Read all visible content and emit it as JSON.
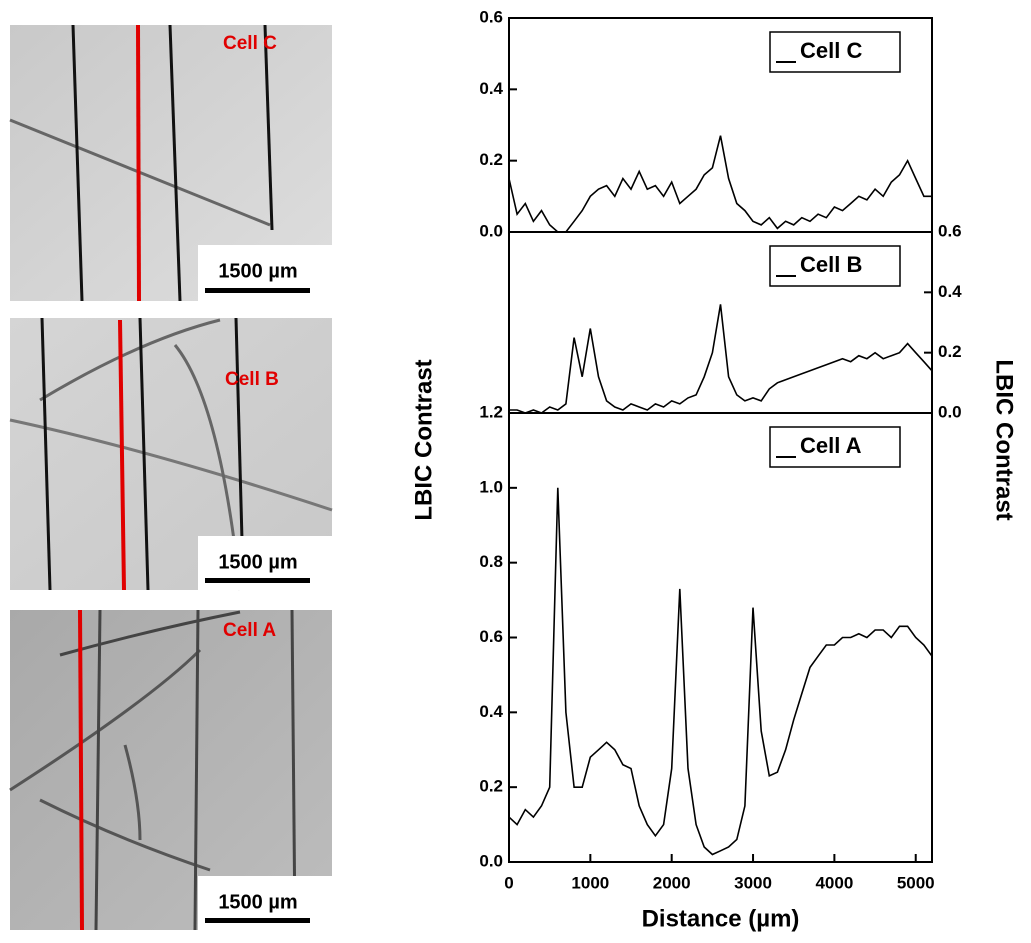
{
  "images": [
    {
      "label": "Cell C",
      "scale_bar": "1500 µm"
    },
    {
      "label": "Cell B",
      "scale_bar": "1500 µm"
    },
    {
      "label": "Cell A",
      "scale_bar": "1500 µm"
    }
  ],
  "chart_data": [
    {
      "type": "line",
      "x": [
        0,
        100,
        200,
        300,
        400,
        500,
        600,
        700,
        800,
        900,
        1000,
        1100,
        1200,
        1300,
        1400,
        1500,
        1600,
        1700,
        1800,
        1900,
        2000,
        2100,
        2200,
        2300,
        2400,
        2500,
        2600,
        2700,
        2800,
        2900,
        3000,
        3100,
        3200,
        3300,
        3400,
        3500,
        3600,
        3700,
        3800,
        3900,
        4000,
        4100,
        4200,
        4300,
        4400,
        4500,
        4600,
        4700,
        4800,
        4900,
        5000,
        5100,
        5200
      ],
      "series": [
        {
          "name": "Cell C",
          "color": "#000000",
          "values": [
            0.15,
            0.05,
            0.08,
            0.03,
            0.06,
            0.02,
            0.0,
            0.0,
            0.03,
            0.06,
            0.1,
            0.12,
            0.13,
            0.1,
            0.15,
            0.12,
            0.17,
            0.12,
            0.13,
            0.1,
            0.14,
            0.08,
            0.1,
            0.12,
            0.16,
            0.18,
            0.27,
            0.15,
            0.08,
            0.06,
            0.03,
            0.02,
            0.04,
            0.01,
            0.03,
            0.02,
            0.04,
            0.03,
            0.05,
            0.04,
            0.07,
            0.06,
            0.08,
            0.1,
            0.09,
            0.12,
            0.1,
            0.14,
            0.16,
            0.2,
            0.15,
            0.1,
            0.1
          ]
        }
      ],
      "xlim": [
        0,
        5200
      ],
      "ylim": [
        0,
        0.6
      ],
      "yaxis": "left",
      "yticks": [
        {
          "value": 0,
          "label": "0.0"
        },
        0.2,
        0.4,
        0.6
      ]
    },
    {
      "type": "line",
      "x": [
        0,
        100,
        200,
        300,
        400,
        500,
        600,
        700,
        800,
        900,
        1000,
        1100,
        1200,
        1300,
        1400,
        1500,
        1600,
        1700,
        1800,
        1900,
        2000,
        2100,
        2200,
        2300,
        2400,
        2500,
        2600,
        2700,
        2800,
        2900,
        3000,
        3100,
        3200,
        3300,
        3400,
        3500,
        3600,
        3700,
        3800,
        3900,
        4000,
        4100,
        4200,
        4300,
        4400,
        4500,
        4600,
        4700,
        4800,
        4900,
        5000,
        5100,
        5200
      ],
      "series": [
        {
          "name": "Cell B",
          "color": "#000000",
          "values": [
            0.01,
            0.01,
            0.0,
            0.01,
            0.0,
            0.02,
            0.01,
            0.03,
            0.25,
            0.12,
            0.28,
            0.12,
            0.04,
            0.02,
            0.01,
            0.03,
            0.02,
            0.01,
            0.03,
            0.02,
            0.04,
            0.03,
            0.05,
            0.06,
            0.12,
            0.2,
            0.36,
            0.12,
            0.06,
            0.04,
            0.05,
            0.04,
            0.08,
            0.1,
            0.11,
            0.12,
            0.13,
            0.14,
            0.15,
            0.16,
            0.17,
            0.18,
            0.17,
            0.19,
            0.18,
            0.2,
            0.18,
            0.19,
            0.2,
            0.23,
            0.2,
            0.17,
            0.14
          ]
        }
      ],
      "xlim": [
        0,
        5200
      ],
      "ylim": [
        0,
        0.6
      ],
      "yaxis": "right",
      "ylabel": "LBIC Contrast",
      "yticks": [
        {
          "value": 0,
          "label": "0.0"
        },
        0.2,
        0.4,
        0.6
      ]
    },
    {
      "type": "line",
      "x": [
        0,
        100,
        200,
        300,
        400,
        500,
        600,
        700,
        800,
        900,
        1000,
        1100,
        1200,
        1300,
        1400,
        1500,
        1600,
        1700,
        1800,
        1900,
        2000,
        2100,
        2200,
        2300,
        2400,
        2500,
        2600,
        2700,
        2800,
        2900,
        3000,
        3100,
        3200,
        3300,
        3400,
        3500,
        3600,
        3700,
        3800,
        3900,
        4000,
        4100,
        4200,
        4300,
        4400,
        4500,
        4600,
        4700,
        4800,
        4900,
        5000,
        5100,
        5200
      ],
      "series": [
        {
          "name": "Cell A",
          "color": "#000000",
          "values": [
            0.12,
            0.1,
            0.14,
            0.12,
            0.15,
            0.2,
            1.0,
            0.4,
            0.2,
            0.2,
            0.28,
            0.3,
            0.32,
            0.3,
            0.26,
            0.25,
            0.15,
            0.1,
            0.07,
            0.1,
            0.25,
            0.73,
            0.25,
            0.1,
            0.04,
            0.02,
            0.03,
            0.04,
            0.06,
            0.15,
            0.68,
            0.35,
            0.23,
            0.24,
            0.3,
            0.38,
            0.45,
            0.52,
            0.55,
            0.58,
            0.58,
            0.6,
            0.6,
            0.61,
            0.6,
            0.62,
            0.62,
            0.6,
            0.63,
            0.63,
            0.6,
            0.58,
            0.55
          ]
        }
      ],
      "xlim": [
        0,
        5200
      ],
      "ylim": [
        0,
        1.2
      ],
      "yaxis": "left",
      "ylabel": "LBIC Contrast",
      "xlabel": "Distance (µm)",
      "xticks": [
        0,
        1000,
        2000,
        3000,
        4000,
        5000
      ],
      "yticks": [
        {
          "value": 0,
          "label": "0.0"
        },
        0.2,
        0.4,
        0.6,
        0.8,
        {
          "value": 1,
          "label": "1.0"
        },
        1.2
      ]
    }
  ]
}
